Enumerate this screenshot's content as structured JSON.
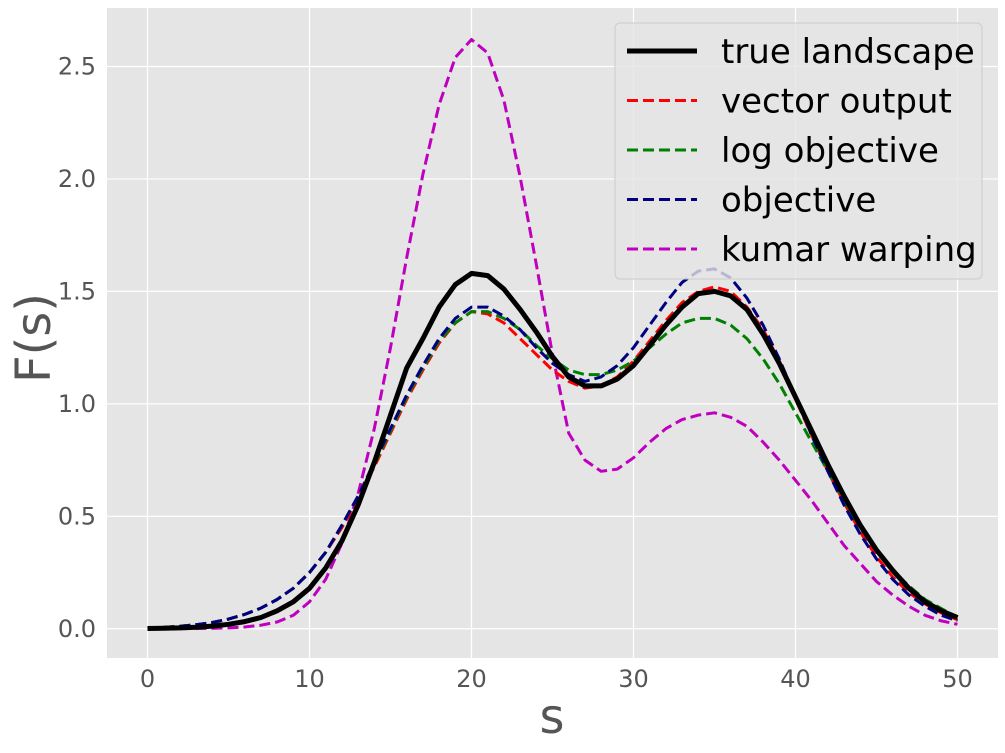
{
  "chart_data": {
    "type": "line",
    "title": "",
    "xlabel": "s",
    "ylabel": "F(s)",
    "xlim": [
      -2.5,
      52.5
    ],
    "ylim": [
      -0.13,
      2.76
    ],
    "xticks": [
      0,
      10,
      20,
      30,
      40,
      50
    ],
    "yticks": [
      0.0,
      0.5,
      1.0,
      1.5,
      2.0,
      2.5
    ],
    "xtick_labels": [
      "0",
      "10",
      "20",
      "30",
      "40",
      "50"
    ],
    "ytick_labels": [
      "0.0",
      "0.5",
      "1.0",
      "1.5",
      "2.0",
      "2.5"
    ],
    "grid": true,
    "background": "#e5e5e5",
    "legend_position": "top-right",
    "x": [
      0,
      1,
      2,
      3,
      4,
      5,
      6,
      7,
      8,
      9,
      10,
      11,
      12,
      13,
      14,
      15,
      16,
      17,
      18,
      19,
      20,
      21,
      22,
      23,
      24,
      25,
      26,
      27,
      28,
      29,
      30,
      31,
      32,
      33,
      34,
      35,
      36,
      37,
      38,
      39,
      40,
      41,
      42,
      43,
      44,
      45,
      46,
      47,
      48,
      49,
      50
    ],
    "series": [
      {
        "name": "true landscape",
        "color": "#000000",
        "style": "solid",
        "values": [
          0.001,
          0.002,
          0.004,
          0.007,
          0.012,
          0.02,
          0.032,
          0.05,
          0.08,
          0.12,
          0.18,
          0.27,
          0.39,
          0.55,
          0.74,
          0.95,
          1.16,
          1.29,
          1.43,
          1.53,
          1.58,
          1.57,
          1.51,
          1.42,
          1.32,
          1.21,
          1.12,
          1.08,
          1.08,
          1.11,
          1.17,
          1.26,
          1.35,
          1.43,
          1.49,
          1.5,
          1.48,
          1.42,
          1.31,
          1.18,
          1.03,
          0.88,
          0.73,
          0.59,
          0.46,
          0.35,
          0.26,
          0.18,
          0.12,
          0.08,
          0.05
        ]
      },
      {
        "name": "vector output",
        "color": "#ff0000",
        "style": "dashed",
        "values": [
          0.003,
          0.006,
          0.011,
          0.018,
          0.028,
          0.043,
          0.064,
          0.092,
          0.13,
          0.18,
          0.25,
          0.34,
          0.45,
          0.58,
          0.72,
          0.87,
          1.02,
          1.15,
          1.27,
          1.36,
          1.41,
          1.4,
          1.36,
          1.29,
          1.22,
          1.15,
          1.1,
          1.07,
          1.08,
          1.12,
          1.19,
          1.28,
          1.37,
          1.45,
          1.5,
          1.52,
          1.5,
          1.43,
          1.33,
          1.19,
          1.02,
          0.86,
          0.7,
          0.56,
          0.43,
          0.32,
          0.23,
          0.16,
          0.11,
          0.07,
          0.04
        ]
      },
      {
        "name": "log objective",
        "color": "#008000",
        "style": "dashed",
        "values": [
          0.003,
          0.006,
          0.011,
          0.018,
          0.028,
          0.043,
          0.064,
          0.092,
          0.13,
          0.18,
          0.25,
          0.34,
          0.46,
          0.59,
          0.73,
          0.88,
          1.03,
          1.16,
          1.28,
          1.36,
          1.41,
          1.41,
          1.38,
          1.33,
          1.26,
          1.2,
          1.15,
          1.13,
          1.13,
          1.15,
          1.19,
          1.25,
          1.31,
          1.36,
          1.38,
          1.38,
          1.35,
          1.29,
          1.2,
          1.09,
          0.96,
          0.83,
          0.7,
          0.57,
          0.45,
          0.35,
          0.26,
          0.19,
          0.13,
          0.09,
          0.05
        ]
      },
      {
        "name": "objective",
        "color": "#000080",
        "style": "dashed",
        "values": [
          0.003,
          0.006,
          0.011,
          0.018,
          0.028,
          0.043,
          0.064,
          0.092,
          0.13,
          0.18,
          0.25,
          0.34,
          0.46,
          0.59,
          0.74,
          0.89,
          1.04,
          1.17,
          1.29,
          1.38,
          1.43,
          1.43,
          1.39,
          1.33,
          1.25,
          1.18,
          1.13,
          1.1,
          1.12,
          1.17,
          1.25,
          1.35,
          1.45,
          1.54,
          1.59,
          1.6,
          1.56,
          1.47,
          1.35,
          1.2,
          1.03,
          0.86,
          0.7,
          0.55,
          0.42,
          0.31,
          0.22,
          0.15,
          0.1,
          0.06,
          0.035
        ]
      },
      {
        "name": "kumar warping",
        "color": "#bf00bf",
        "style": "dashed",
        "values": [
          0.0,
          0.0,
          0.0005,
          0.001,
          0.002,
          0.004,
          0.008,
          0.016,
          0.03,
          0.06,
          0.12,
          0.22,
          0.38,
          0.6,
          0.89,
          1.25,
          1.65,
          2.02,
          2.33,
          2.54,
          2.62,
          2.56,
          2.35,
          2.01,
          1.62,
          1.22,
          0.87,
          0.75,
          0.7,
          0.71,
          0.76,
          0.83,
          0.89,
          0.93,
          0.95,
          0.96,
          0.94,
          0.9,
          0.83,
          0.75,
          0.66,
          0.57,
          0.47,
          0.37,
          0.29,
          0.21,
          0.15,
          0.1,
          0.06,
          0.035,
          0.02
        ]
      }
    ]
  }
}
